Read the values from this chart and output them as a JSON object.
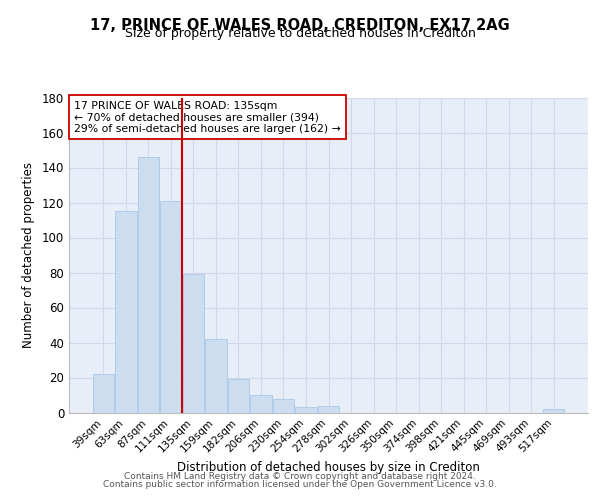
{
  "title": "17, PRINCE OF WALES ROAD, CREDITON, EX17 2AG",
  "subtitle": "Size of property relative to detached houses in Crediton",
  "xlabel": "Distribution of detached houses by size in Crediton",
  "ylabel": "Number of detached properties",
  "bar_labels": [
    "39sqm",
    "63sqm",
    "87sqm",
    "111sqm",
    "135sqm",
    "159sqm",
    "182sqm",
    "206sqm",
    "230sqm",
    "254sqm",
    "278sqm",
    "302sqm",
    "326sqm",
    "350sqm",
    "374sqm",
    "398sqm",
    "421sqm",
    "445sqm",
    "469sqm",
    "493sqm",
    "517sqm"
  ],
  "bar_values": [
    22,
    115,
    146,
    121,
    79,
    42,
    19,
    10,
    8,
    3,
    4,
    0,
    0,
    0,
    0,
    0,
    0,
    0,
    0,
    0,
    2
  ],
  "bar_color": "#ccddf0",
  "bar_edge_color": "#aac8e8",
  "vline_color": "#cc0000",
  "annotation_text": "17 PRINCE OF WALES ROAD: 135sqm\n← 70% of detached houses are smaller (394)\n29% of semi-detached houses are larger (162) →",
  "annotation_box_color": "#ffffff",
  "annotation_box_edge": "#cc0000",
  "ylim": [
    0,
    180
  ],
  "yticks": [
    0,
    20,
    40,
    60,
    80,
    100,
    120,
    140,
    160,
    180
  ],
  "grid_color": "#d0d8ea",
  "bg_color": "#e8eef8",
  "footer1": "Contains HM Land Registry data © Crown copyright and database right 2024.",
  "footer2": "Contains public sector information licensed under the Open Government Licence v3.0."
}
